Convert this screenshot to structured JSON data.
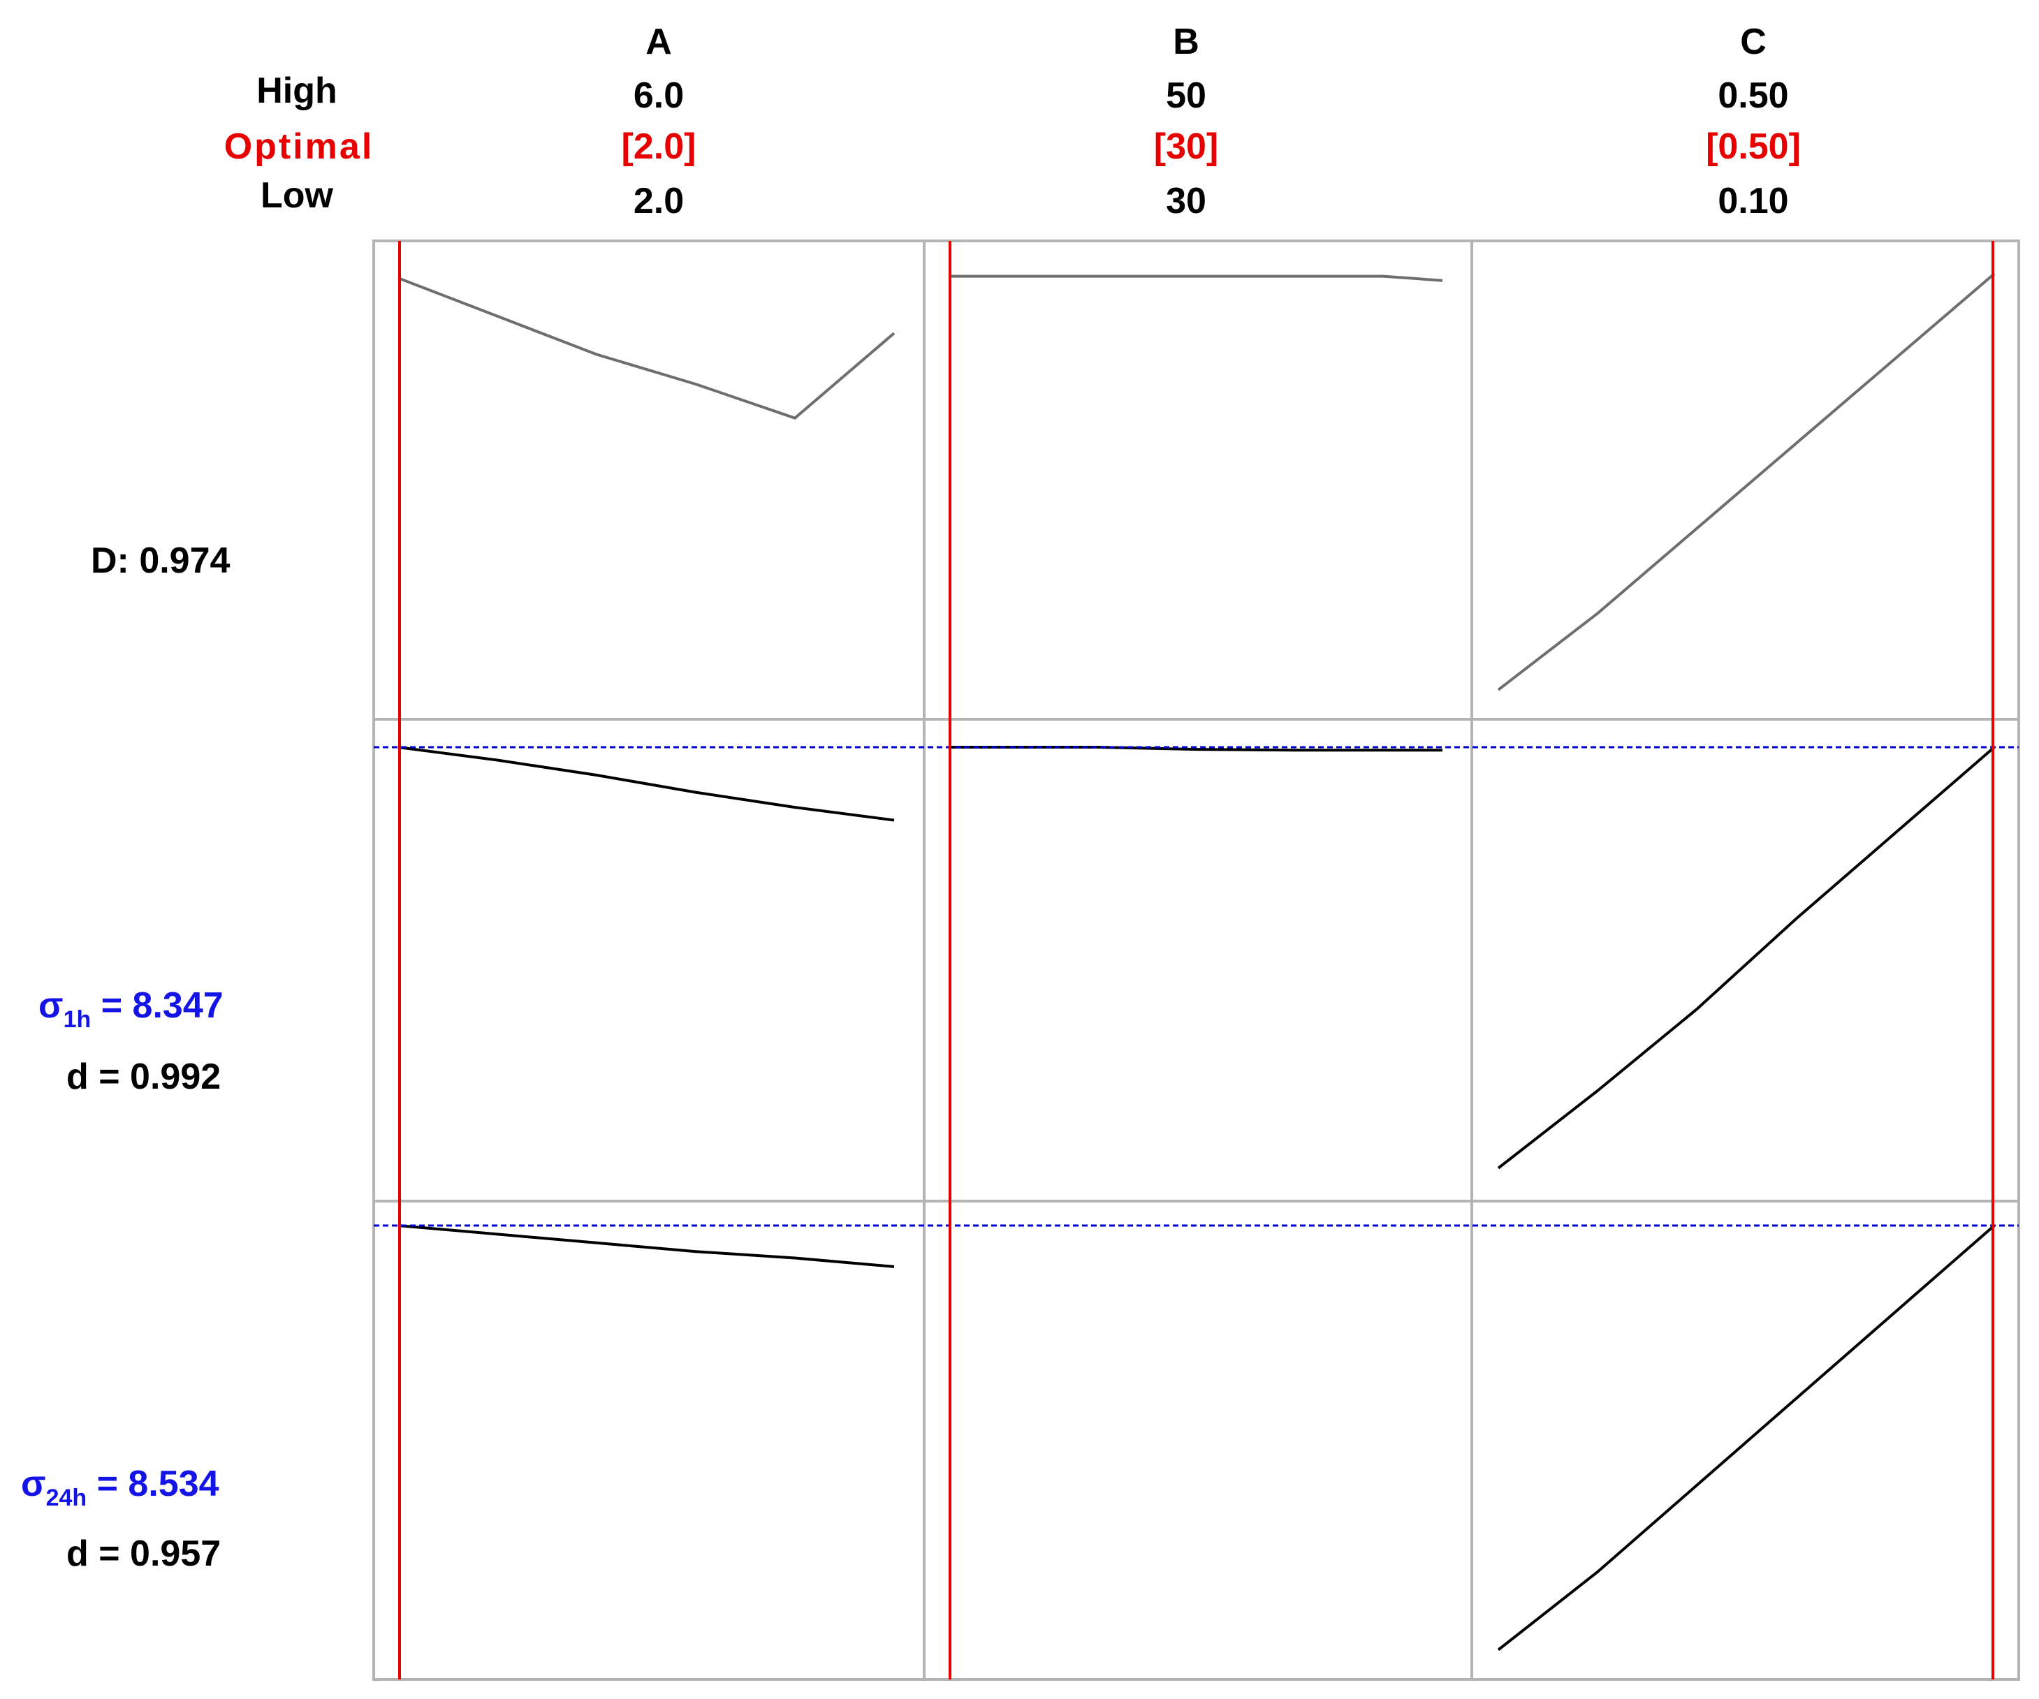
{
  "header_rows": {
    "high_label": "High",
    "optimal_label": "Optimal",
    "low_label": "Low"
  },
  "factors": [
    {
      "name": "A",
      "high": "6.0",
      "optimal": "[2.0]",
      "low": "2.0"
    },
    {
      "name": "B",
      "high": "50",
      "optimal": "[30]",
      "low": "30"
    },
    {
      "name": "C",
      "high": "0.50",
      "optimal": "[0.50]",
      "low": "0.10"
    }
  ],
  "rows": [
    {
      "composite": "D: 0.974"
    },
    {
      "symbol": "σ",
      "sub": "1h",
      "eq": " =  8.347",
      "d": "d  =  0.992"
    },
    {
      "symbol": "σ",
      "sub": "24h",
      "eq": " =  8.534",
      "d": "d  =  0.957"
    }
  ],
  "colors": {
    "grid": "#b4b4b4",
    "optimal_line": "#e60000",
    "target_line": "#0000cc",
    "composite_curve": "#6e6e6e",
    "response_curve": "#000000",
    "label_blue": "#1414e6",
    "label_red": "#e60000"
  },
  "chart_data": {
    "type": "line",
    "panels": [
      {
        "row": 0,
        "col": 0,
        "curve": [
          [
            0,
            0.99
          ],
          [
            0.2,
            0.9
          ],
          [
            0.4,
            0.81
          ],
          [
            0.6,
            0.74
          ],
          [
            0.8,
            0.66
          ],
          [
            1,
            0.86
          ]
        ]
      },
      {
        "row": 0,
        "col": 1,
        "curve": [
          [
            0,
            0.994
          ],
          [
            0.3,
            0.994
          ],
          [
            0.6,
            0.994
          ],
          [
            0.88,
            0.994
          ],
          [
            1,
            0.984
          ]
        ]
      },
      {
        "row": 0,
        "col": 2,
        "curve": [
          [
            0,
            0.02
          ],
          [
            0.2,
            0.2
          ],
          [
            0.4,
            0.4
          ],
          [
            0.6,
            0.6
          ],
          [
            0.8,
            0.8
          ],
          [
            1,
            1.0
          ]
        ]
      },
      {
        "row": 1,
        "col": 0,
        "curve": [
          [
            0,
            1.0
          ],
          [
            0.2,
            0.97
          ],
          [
            0.4,
            0.935
          ],
          [
            0.6,
            0.895
          ],
          [
            0.8,
            0.86
          ],
          [
            1,
            0.83
          ]
        ]
      },
      {
        "row": 1,
        "col": 1,
        "curve": [
          [
            0,
            1.0
          ],
          [
            0.3,
            1.0
          ],
          [
            0.5,
            0.995
          ],
          [
            0.7,
            0.993
          ],
          [
            1,
            0.993
          ]
        ]
      },
      {
        "row": 1,
        "col": 2,
        "curve": [
          [
            0,
            0.02
          ],
          [
            0.2,
            0.2
          ],
          [
            0.4,
            0.39
          ],
          [
            0.6,
            0.6
          ],
          [
            0.8,
            0.8
          ],
          [
            1,
            1.0
          ]
        ]
      },
      {
        "row": 2,
        "col": 0,
        "curve": [
          [
            0,
            1.0
          ],
          [
            0.2,
            0.98
          ],
          [
            0.4,
            0.96
          ],
          [
            0.6,
            0.94
          ],
          [
            0.8,
            0.925
          ],
          [
            1,
            0.905
          ]
        ]
      },
      {
        "row": 2,
        "col": 1,
        "curve": []
      },
      {
        "row": 2,
        "col": 2,
        "curve": [
          [
            0,
            0.02
          ],
          [
            0.2,
            0.2
          ],
          [
            0.4,
            0.4
          ],
          [
            0.6,
            0.6
          ],
          [
            0.8,
            0.8
          ],
          [
            1,
            1.0
          ]
        ]
      }
    ]
  }
}
